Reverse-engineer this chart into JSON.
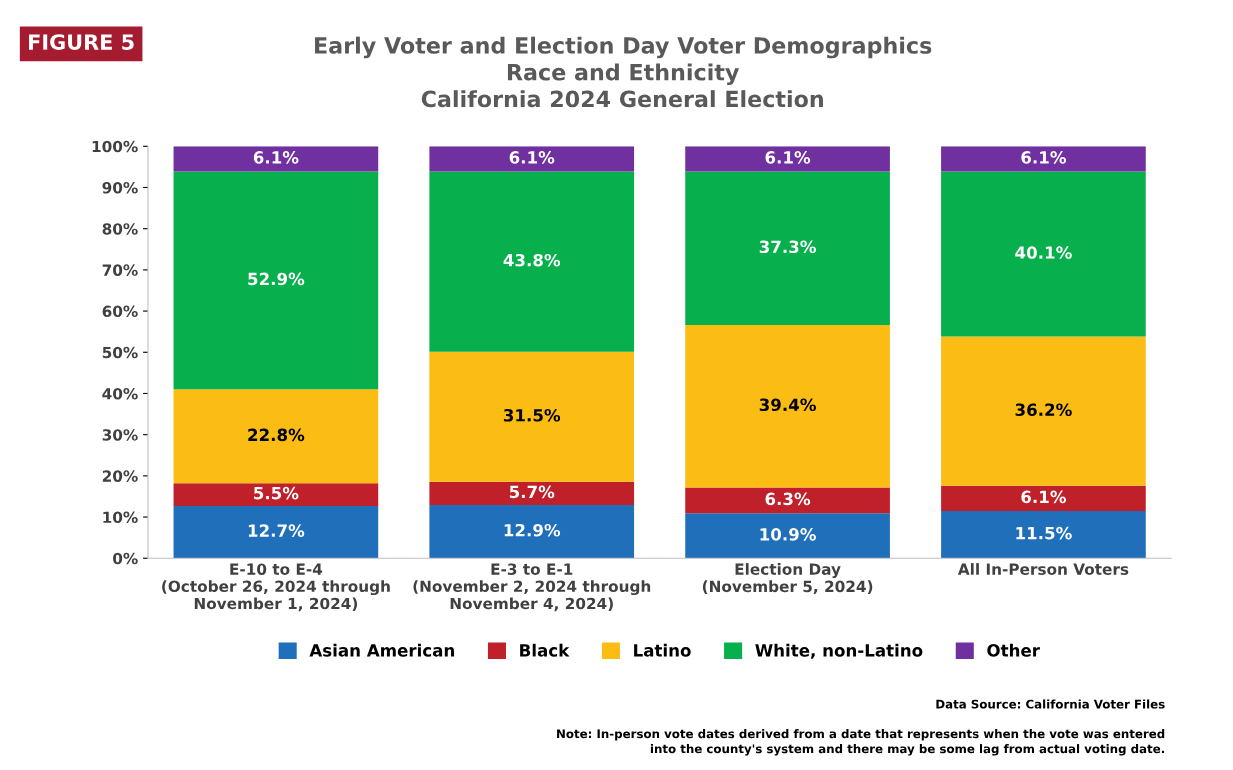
{
  "chart_data": {
    "type": "bar",
    "stacked": true,
    "title": "Early Voter and Election Day Voter Demographics\nRace and Ethnicity\nCalifornia 2024 General Election",
    "categories": [
      "E-10 to E-4\n(October 26, 2024 through\nNovember 1, 2024)",
      "E-3 to E-1\n(November 2, 2024 through\nNovember 4, 2024)",
      "Election Day\n(November 5, 2024)",
      "All In-Person Voters"
    ],
    "series": [
      {
        "name": "Asian American",
        "color": "#1f6fba",
        "values": [
          12.7,
          12.9,
          10.9,
          11.5
        ],
        "value_labels": [
          "12.7%",
          "12.9%",
          "10.9%",
          "11.5%"
        ]
      },
      {
        "name": "Black",
        "color": "#c0202a",
        "values": [
          5.5,
          5.7,
          6.3,
          6.1
        ],
        "value_labels": [
          "5.5%",
          "5.7%",
          "6.3%",
          "6.1%"
        ]
      },
      {
        "name": "Latino",
        "color": "#fbbd13",
        "values": [
          22.8,
          31.5,
          39.4,
          36.2
        ],
        "value_labels": [
          "22.8%",
          "31.5%",
          "39.4%",
          "36.2%"
        ]
      },
      {
        "name": "White, non-Latino",
        "color": "#07b04d",
        "values": [
          52.9,
          43.8,
          37.3,
          40.1
        ],
        "value_labels": [
          "52.9%",
          "43.8%",
          "37.3%",
          "40.1%"
        ]
      },
      {
        "name": "Other",
        "color": "#7030a0",
        "values": [
          6.1,
          6.1,
          6.1,
          6.1
        ],
        "value_labels": [
          "6.1%",
          "6.1%",
          "6.1%",
          "6.1%"
        ]
      }
    ],
    "ylim": [
      0,
      100
    ],
    "yticks": [
      {
        "value": 0,
        "label": "0%"
      },
      {
        "value": 10,
        "label": "10%"
      },
      {
        "value": 20,
        "label": "20%"
      },
      {
        "value": 30,
        "label": "30%"
      },
      {
        "value": 40,
        "label": "40%"
      },
      {
        "value": 50,
        "label": "50%"
      },
      {
        "value": 60,
        "label": "60%"
      },
      {
        "value": 70,
        "label": "70%"
      },
      {
        "value": 80,
        "label": "80%"
      },
      {
        "value": 90,
        "label": "90%"
      },
      {
        "value": 100,
        "label": "100%"
      }
    ],
    "grid": false,
    "legend": "bottom",
    "annotations": [
      "FIGURE 5",
      "Data Source: California Voter Files",
      "Note: In-person vote dates derived from a date that represents when the vote was entered\ninto the county's system and there may be some lag from actual voting date."
    ]
  }
}
